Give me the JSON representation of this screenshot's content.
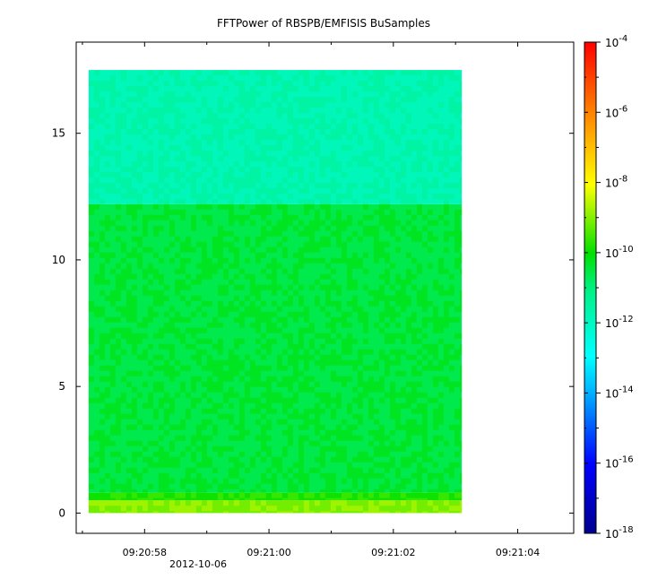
{
  "chart_data": {
    "type": "heatmap",
    "title": "FFTPower of RBSPB/EMFISIS  BuSamples",
    "xlabel": "",
    "ylabel": "",
    "x_ticks": [
      "09:20:58",
      "09:21:00",
      "09:21:02",
      "09:21:04"
    ],
    "x_range": [
      "09:20:56.9",
      "09:21:04.9"
    ],
    "x_date_label": "2012-10-06",
    "ylim": [
      -0.8,
      18.6
    ],
    "y_ticks": [
      0,
      5,
      10,
      15
    ],
    "data_extent": {
      "time_start": "09:20:57.1",
      "time_end": "09:21:03.1",
      "freq_min": 0,
      "freq_max": 17.5
    },
    "colorbar": {
      "scale": "log",
      "range": [
        1e-18,
        0.0001
      ],
      "tick_exponents": [
        -18,
        -16,
        -14,
        -12,
        -10,
        -8,
        -6,
        -4
      ],
      "tick_base": "10"
    },
    "bands": [
      {
        "freq_from": 12.2,
        "freq_to": 17.5,
        "log_power": -11.9
      },
      {
        "freq_from": 0.8,
        "freq_to": 12.2,
        "log_power": -10.6
      },
      {
        "freq_from": 0.5,
        "freq_to": 0.8,
        "log_power": -9.9
      },
      {
        "freq_from": 0.0,
        "freq_to": 0.5,
        "log_power": -9.1
      }
    ],
    "colors": {
      "low": "#0000a0",
      "cyan": "#00e0e0",
      "green": "#00e000",
      "yellow": "#f0f000",
      "high": "#e00000"
    }
  }
}
